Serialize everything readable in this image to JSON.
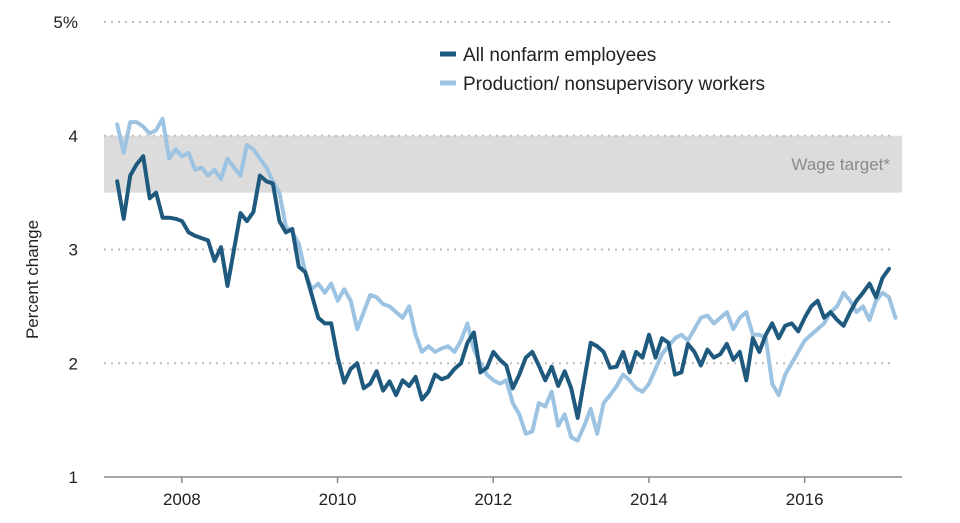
{
  "chart_data": {
    "type": "line",
    "ylabel": "Percent change",
    "xlabel": "",
    "ylim": [
      1,
      5
    ],
    "xlim": [
      2007.0,
      2017.25
    ],
    "y_ticks": [
      {
        "value": 1,
        "label": "1"
      },
      {
        "value": 2,
        "label": "2"
      },
      {
        "value": 3,
        "label": "3"
      },
      {
        "value": 4,
        "label": "4"
      },
      {
        "value": 5,
        "label": "5%"
      }
    ],
    "x_ticks": [
      {
        "value": 2008,
        "label": "2008"
      },
      {
        "value": 2010,
        "label": "2010"
      },
      {
        "value": 2012,
        "label": "2012"
      },
      {
        "value": 2014,
        "label": "2014"
      },
      {
        "value": 2016,
        "label": "2016"
      }
    ],
    "grid": "horizontal dotted",
    "legend_position": "top-center",
    "band": {
      "label": "Wage target*",
      "from": 3.5,
      "to": 4.0,
      "color": "#dcdcdc"
    },
    "series": [
      {
        "name": "All nonfarm employees",
        "color": "#1f5a7e",
        "x_start": 2007.17,
        "step": 0.0833,
        "values": [
          3.6,
          3.27,
          3.65,
          3.75,
          3.82,
          3.45,
          3.5,
          3.28,
          3.28,
          3.27,
          3.25,
          3.15,
          3.12,
          3.1,
          3.08,
          2.9,
          3.02,
          2.68,
          3.0,
          3.32,
          3.25,
          3.33,
          3.65,
          3.6,
          3.58,
          3.25,
          3.15,
          3.18,
          2.85,
          2.8,
          2.6,
          2.4,
          2.35,
          2.35,
          2.05,
          1.83,
          1.95,
          2.0,
          1.78,
          1.82,
          1.93,
          1.76,
          1.84,
          1.72,
          1.85,
          1.8,
          1.88,
          1.68,
          1.75,
          1.9,
          1.86,
          1.88,
          1.95,
          2.0,
          2.18,
          2.27,
          1.92,
          1.96,
          2.1,
          2.03,
          1.98,
          1.78,
          1.9,
          2.05,
          2.1,
          1.98,
          1.85,
          1.97,
          1.8,
          1.93,
          1.78,
          1.52,
          1.85,
          2.18,
          2.15,
          2.1,
          1.96,
          1.97,
          2.1,
          1.92,
          2.1,
          2.05,
          2.25,
          2.05,
          2.22,
          2.18,
          1.9,
          1.92,
          2.17,
          2.1,
          1.98,
          2.12,
          2.05,
          2.08,
          2.17,
          2.03,
          2.1,
          1.85,
          2.22,
          2.1,
          2.25,
          2.35,
          2.22,
          2.33,
          2.35,
          2.28,
          2.4,
          2.5,
          2.55,
          2.4,
          2.45,
          2.38,
          2.33,
          2.45,
          2.55,
          2.62,
          2.7,
          2.58,
          2.75,
          2.83
        ]
      },
      {
        "name": "Production/ nonsupervisory workers",
        "color": "#9dc3e2",
        "x_start": 2007.17,
        "step": 0.0833,
        "values": [
          4.1,
          3.85,
          4.12,
          4.12,
          4.08,
          4.02,
          4.05,
          4.15,
          3.8,
          3.88,
          3.82,
          3.85,
          3.7,
          3.72,
          3.65,
          3.7,
          3.62,
          3.8,
          3.72,
          3.65,
          3.92,
          3.88,
          3.8,
          3.72,
          3.6,
          3.5,
          3.2,
          3.15,
          3.05,
          2.8,
          2.65,
          2.7,
          2.62,
          2.7,
          2.55,
          2.65,
          2.55,
          2.3,
          2.45,
          2.6,
          2.58,
          2.52,
          2.5,
          2.45,
          2.4,
          2.5,
          2.25,
          2.1,
          2.15,
          2.1,
          2.13,
          2.15,
          2.1,
          2.2,
          2.35,
          2.12,
          2.0,
          1.9,
          1.85,
          1.82,
          1.85,
          1.65,
          1.55,
          1.38,
          1.4,
          1.65,
          1.62,
          1.75,
          1.45,
          1.55,
          1.35,
          1.32,
          1.45,
          1.6,
          1.38,
          1.65,
          1.72,
          1.8,
          1.9,
          1.85,
          1.78,
          1.75,
          1.82,
          1.95,
          2.08,
          2.15,
          2.22,
          2.25,
          2.2,
          2.3,
          2.4,
          2.42,
          2.35,
          2.4,
          2.45,
          2.3,
          2.4,
          2.45,
          2.25,
          2.25,
          2.22,
          1.82,
          1.72,
          1.9,
          2.0,
          2.1,
          2.2,
          2.25,
          2.3,
          2.35,
          2.45,
          2.5,
          2.62,
          2.55,
          2.45,
          2.5,
          2.38,
          2.55,
          2.62,
          2.58,
          2.4
        ]
      }
    ]
  }
}
